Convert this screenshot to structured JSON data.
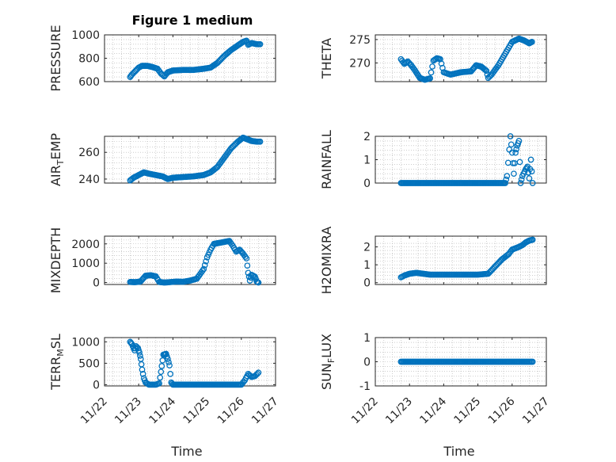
{
  "figure": {
    "title": "Figure 1 medium",
    "xlabel": "Time",
    "colors": {
      "marker": "#0072BD",
      "axis": "#262626",
      "grid": "#b0b0b0"
    }
  },
  "chart_data": [
    {
      "type": "scatter",
      "ylabel_main": "PRESSURE",
      "ylabel_sub": "",
      "ylim": [
        600,
        1000
      ],
      "yticks": [
        600,
        800,
        1000
      ],
      "xlim": [
        "2016-11-22",
        "2016-11-27"
      ],
      "xticks": [
        "11/22",
        "11/23",
        "11/24",
        "11/25",
        "11/26",
        "11/27"
      ],
      "points": [
        [
          0.75,
          640
        ],
        [
          0.8,
          660
        ],
        [
          0.9,
          690
        ],
        [
          1.0,
          720
        ],
        [
          1.1,
          735
        ],
        [
          1.25,
          735
        ],
        [
          1.4,
          725
        ],
        [
          1.55,
          710
        ],
        [
          1.65,
          670
        ],
        [
          1.75,
          645
        ],
        [
          1.85,
          680
        ],
        [
          2.0,
          695
        ],
        [
          2.3,
          700
        ],
        [
          2.6,
          700
        ],
        [
          2.9,
          710
        ],
        [
          3.1,
          720
        ],
        [
          3.3,
          760
        ],
        [
          3.5,
          820
        ],
        [
          3.7,
          870
        ],
        [
          3.9,
          910
        ],
        [
          4.05,
          940
        ],
        [
          4.15,
          950
        ],
        [
          4.2,
          915
        ],
        [
          4.3,
          930
        ],
        [
          4.45,
          920
        ],
        [
          4.55,
          920
        ]
      ]
    },
    {
      "type": "scatter",
      "ylabel_main": "THETA",
      "ylabel_sub": "",
      "ylim": [
        266,
        276
      ],
      "yticks": [
        270,
        275
      ],
      "xlim": [
        "2016-11-22",
        "2016-11-27"
      ],
      "xticks": [
        "11/22",
        "11/23",
        "11/24",
        "11/25",
        "11/26",
        "11/27"
      ],
      "points": [
        [
          0.75,
          270.8
        ],
        [
          0.85,
          269.8
        ],
        [
          0.95,
          270.3
        ],
        [
          1.05,
          269.5
        ],
        [
          1.15,
          268.5
        ],
        [
          1.3,
          266.8
        ],
        [
          1.45,
          266.4
        ],
        [
          1.6,
          266.7
        ],
        [
          1.7,
          270.5
        ],
        [
          1.8,
          271
        ],
        [
          1.9,
          270.8
        ],
        [
          2.0,
          268
        ],
        [
          2.2,
          267.5
        ],
        [
          2.5,
          268
        ],
        [
          2.8,
          268.2
        ],
        [
          2.95,
          269.5
        ],
        [
          3.1,
          269.2
        ],
        [
          3.25,
          268.3
        ],
        [
          3.3,
          266.8
        ],
        [
          3.4,
          267.5
        ],
        [
          3.6,
          269.5
        ],
        [
          3.8,
          272
        ],
        [
          4.0,
          274.5
        ],
        [
          4.2,
          275.2
        ],
        [
          4.35,
          274.8
        ],
        [
          4.5,
          274.2
        ],
        [
          4.58,
          274.5
        ]
      ]
    },
    {
      "type": "scatter",
      "ylabel_main": "AIR",
      "ylabel_sub": "T",
      "ylabel_after": "EMP",
      "ylim": [
        237,
        272
      ],
      "yticks": [
        240,
        260
      ],
      "xlim": [
        "2016-11-22",
        "2016-11-27"
      ],
      "xticks": [
        "11/22",
        "11/23",
        "11/24",
        "11/25",
        "11/26",
        "11/27"
      ],
      "points": [
        [
          0.75,
          239
        ],
        [
          0.85,
          241
        ],
        [
          1.0,
          243
        ],
        [
          1.15,
          245
        ],
        [
          1.3,
          244
        ],
        [
          1.5,
          243
        ],
        [
          1.7,
          242
        ],
        [
          1.85,
          240
        ],
        [
          2.0,
          241
        ],
        [
          2.3,
          241.5
        ],
        [
          2.6,
          242
        ],
        [
          2.9,
          243
        ],
        [
          3.1,
          245
        ],
        [
          3.3,
          249
        ],
        [
          3.5,
          256
        ],
        [
          3.7,
          263
        ],
        [
          3.9,
          268
        ],
        [
          4.05,
          271
        ],
        [
          4.15,
          270
        ],
        [
          4.3,
          268.5
        ],
        [
          4.45,
          268
        ],
        [
          4.55,
          268
        ]
      ]
    },
    {
      "type": "scatter",
      "ylabel_main": "RAINFALL",
      "ylabel_sub": "",
      "ylim": [
        0,
        2
      ],
      "yticks": [
        0,
        1,
        2
      ],
      "xlim": [
        "2016-11-22",
        "2016-11-27"
      ],
      "xticks": [
        "11/22",
        "11/23",
        "11/24",
        "11/25",
        "11/26",
        "11/27"
      ],
      "points": [
        [
          0.75,
          0
        ],
        [
          1.0,
          0
        ],
        [
          1.5,
          0
        ],
        [
          2.0,
          0
        ],
        [
          2.5,
          0
        ],
        [
          3.0,
          0
        ],
        [
          3.5,
          0
        ],
        [
          3.8,
          0
        ],
        [
          3.85,
          0.3
        ],
        [
          3.95,
          2.0
        ],
        [
          4.0,
          1.3
        ],
        [
          4.05,
          0.4
        ],
        [
          4.1,
          1.3
        ],
        [
          4.15,
          1.6
        ],
        [
          4.2,
          1.8
        ],
        [
          4.25,
          0
        ],
        [
          4.3,
          0.3
        ],
        [
          4.4,
          0.6
        ],
        [
          4.45,
          0.7
        ],
        [
          4.5,
          0.2
        ],
        [
          4.55,
          1.0
        ],
        [
          4.6,
          0
        ]
      ]
    },
    {
      "type": "scatter",
      "ylabel_main": "MIXDEPTH",
      "ylabel_sub": "",
      "ylim": [
        -100,
        2400
      ],
      "yticks": [
        0,
        1000,
        2000
      ],
      "xlim": [
        "2016-11-22",
        "2016-11-27"
      ],
      "xticks": [
        "11/22",
        "11/23",
        "11/24",
        "11/25",
        "11/26",
        "11/27"
      ],
      "points": [
        [
          0.75,
          30
        ],
        [
          0.9,
          20
        ],
        [
          1.05,
          50
        ],
        [
          1.2,
          350
        ],
        [
          1.35,
          380
        ],
        [
          1.5,
          320
        ],
        [
          1.6,
          30
        ],
        [
          1.75,
          0
        ],
        [
          1.9,
          20
        ],
        [
          2.1,
          50
        ],
        [
          2.3,
          40
        ],
        [
          2.5,
          100
        ],
        [
          2.7,
          200
        ],
        [
          2.9,
          700
        ],
        [
          3.0,
          1300
        ],
        [
          3.1,
          1700
        ],
        [
          3.2,
          2000
        ],
        [
          3.35,
          2050
        ],
        [
          3.5,
          2100
        ],
        [
          3.65,
          2150
        ],
        [
          3.75,
          1900
        ],
        [
          3.85,
          1600
        ],
        [
          3.95,
          1700
        ],
        [
          4.05,
          1500
        ],
        [
          4.15,
          1250
        ],
        [
          4.2,
          500
        ],
        [
          4.25,
          100
        ],
        [
          4.3,
          400
        ],
        [
          4.4,
          300
        ],
        [
          4.45,
          50
        ],
        [
          4.5,
          0
        ]
      ]
    },
    {
      "type": "scatter",
      "ylabel_main": "H2OMIXRA",
      "ylabel_sub": "",
      "ylim": [
        -0.1,
        2.6
      ],
      "yticks": [
        0,
        1,
        2
      ],
      "xlim": [
        "2016-11-22",
        "2016-11-27"
      ],
      "xticks": [
        "11/22",
        "11/23",
        "11/24",
        "11/25",
        "11/26",
        "11/27"
      ],
      "points": [
        [
          0.75,
          0.3
        ],
        [
          0.85,
          0.4
        ],
        [
          1.0,
          0.5
        ],
        [
          1.2,
          0.55
        ],
        [
          1.4,
          0.5
        ],
        [
          1.6,
          0.45
        ],
        [
          2.0,
          0.45
        ],
        [
          2.5,
          0.45
        ],
        [
          3.0,
          0.45
        ],
        [
          3.3,
          0.5
        ],
        [
          3.5,
          0.9
        ],
        [
          3.7,
          1.3
        ],
        [
          3.9,
          1.6
        ],
        [
          4.0,
          1.85
        ],
        [
          4.2,
          2.0
        ],
        [
          4.3,
          2.1
        ],
        [
          4.4,
          2.25
        ],
        [
          4.5,
          2.35
        ],
        [
          4.6,
          2.4
        ]
      ]
    },
    {
      "type": "scatter",
      "ylabel_main": "TERR",
      "ylabel_sub": "M",
      "ylabel_after": "SL",
      "ylim": [
        -30,
        1100
      ],
      "yticks": [
        0,
        500,
        1000
      ],
      "xlim": [
        "2016-11-22",
        "2016-11-27"
      ],
      "xticks": [
        "11/22",
        "11/23",
        "11/24",
        "11/25",
        "11/26",
        "11/27"
      ],
      "points": [
        [
          0.75,
          1000
        ],
        [
          0.8,
          950
        ],
        [
          0.88,
          800
        ],
        [
          0.92,
          900
        ],
        [
          0.98,
          850
        ],
        [
          1.02,
          750
        ],
        [
          1.06,
          600
        ],
        [
          1.1,
          350
        ],
        [
          1.15,
          150
        ],
        [
          1.2,
          50
        ],
        [
          1.3,
          0
        ],
        [
          1.5,
          0
        ],
        [
          1.6,
          30
        ],
        [
          1.65,
          300
        ],
        [
          1.72,
          700
        ],
        [
          1.8,
          720
        ],
        [
          1.85,
          600
        ],
        [
          1.9,
          450
        ],
        [
          1.95,
          50
        ],
        [
          2.0,
          0
        ],
        [
          2.5,
          0
        ],
        [
          3.0,
          0
        ],
        [
          3.5,
          0
        ],
        [
          4.0,
          0
        ],
        [
          4.1,
          100
        ],
        [
          4.2,
          250
        ],
        [
          4.3,
          180
        ],
        [
          4.4,
          200
        ],
        [
          4.5,
          280
        ]
      ]
    },
    {
      "type": "scatter",
      "ylabel_main": "SUN",
      "ylabel_sub": "F",
      "ylabel_after": "LUX",
      "ylim": [
        -1,
        1
      ],
      "yticks": [
        -1,
        0,
        1
      ],
      "xlim": [
        "2016-11-22",
        "2016-11-27"
      ],
      "xticks": [
        "11/22",
        "11/23",
        "11/24",
        "11/25",
        "11/26",
        "11/27"
      ],
      "points": [
        [
          0.75,
          0
        ],
        [
          1.0,
          0
        ],
        [
          1.5,
          0
        ],
        [
          2.0,
          0
        ],
        [
          2.5,
          0
        ],
        [
          3.0,
          0
        ],
        [
          3.5,
          0
        ],
        [
          4.0,
          0
        ],
        [
          4.5,
          0
        ],
        [
          4.6,
          0
        ]
      ]
    }
  ]
}
